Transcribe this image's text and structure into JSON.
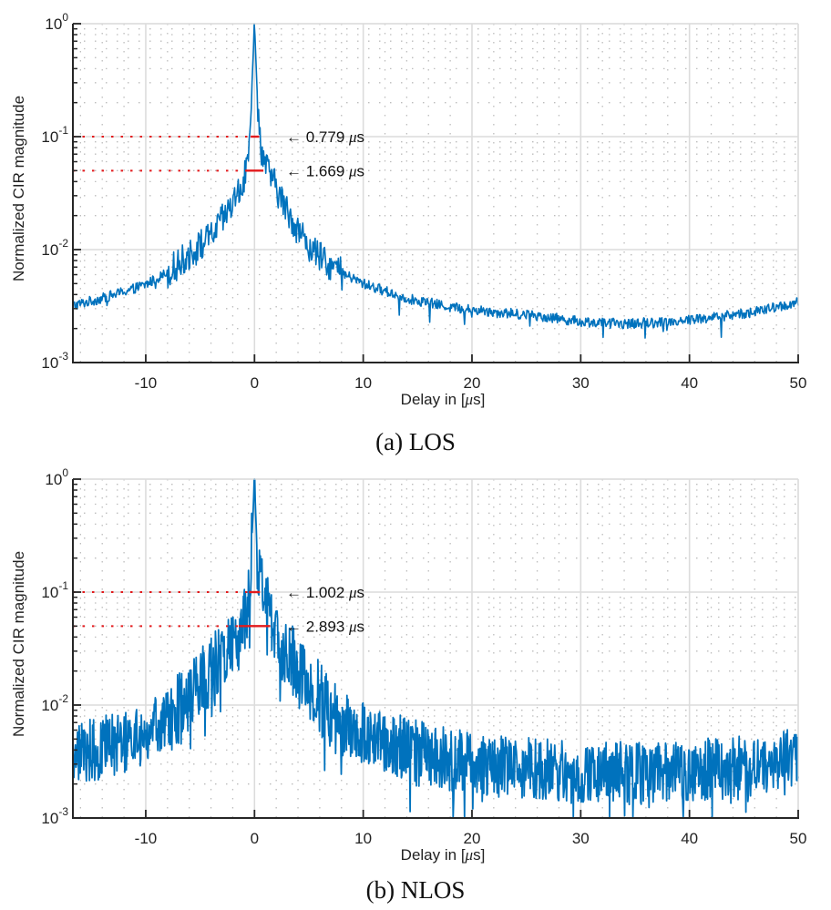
{
  "chart_data": [
    {
      "type": "line",
      "id": "los",
      "caption": "(a) LOS",
      "xlabel": "Delay in [μs]",
      "ylabel": "Normalized CIR magnitude",
      "xlim": [
        -16.7,
        50
      ],
      "ylim": [
        0.001,
        1
      ],
      "yscale": "log",
      "grid": true,
      "minor_grid": true,
      "xticks": [
        -10,
        0,
        10,
        20,
        30,
        40,
        50
      ],
      "xtick_labels": [
        "-10",
        "0",
        "10",
        "20",
        "30",
        "40",
        "50"
      ],
      "yticks": [
        0.001,
        0.01,
        0.1,
        1
      ],
      "ytick_labels": [
        {
          "base": "10",
          "exp": "-3"
        },
        {
          "base": "10",
          "exp": "-2"
        },
        {
          "base": "10",
          "exp": "-1"
        },
        {
          "base": "10",
          "exp": "0"
        }
      ],
      "series": [
        {
          "name": "CIR magnitude",
          "color": "#0072BD",
          "noise_level": "low",
          "envelope": {
            "x": [
              -16.7,
              -14,
              -10,
              -8,
              -6,
              -4,
              -3,
              -2,
              -1,
              -0.5,
              0,
              0.3,
              0.6,
              1,
              1.5,
              2,
              3,
              4,
              5,
              6,
              8,
              10,
              14,
              18,
              22,
              26,
              30,
              34,
              38,
              42,
              46,
              50
            ],
            "y": [
              0.0032,
              0.0037,
              0.0049,
              0.0063,
              0.009,
              0.013,
              0.018,
              0.025,
              0.04,
              0.07,
              1.0,
              0.18,
              0.08,
              0.055,
              0.045,
              0.035,
              0.022,
              0.015,
              0.011,
              0.0085,
              0.0062,
              0.005,
              0.0037,
              0.0031,
              0.0028,
              0.0026,
              0.0023,
              0.0022,
              0.0023,
              0.0025,
              0.0028,
              0.0034
            ]
          }
        }
      ],
      "annotations": [
        {
          "level": 0.1,
          "width_label": "0.779",
          "unit": "μs",
          "arrow": "←",
          "x_start": -0.35,
          "x_end": 0.43
        },
        {
          "level": 0.05,
          "width_label": "1.669",
          "unit": "μs",
          "arrow": "←",
          "x_start": -0.85,
          "x_end": 0.82
        }
      ],
      "annotation_color": "#E31A1C"
    },
    {
      "type": "line",
      "id": "nlos",
      "caption": "(b) NLOS",
      "xlabel": "Delay in [μs]",
      "ylabel": "Normalized CIR magnitude",
      "xlim": [
        -16.7,
        50
      ],
      "ylim": [
        0.001,
        1
      ],
      "yscale": "log",
      "grid": true,
      "minor_grid": true,
      "xticks": [
        -10,
        0,
        10,
        20,
        30,
        40,
        50
      ],
      "xtick_labels": [
        "-10",
        "0",
        "10",
        "20",
        "30",
        "40",
        "50"
      ],
      "yticks": [
        0.001,
        0.01,
        0.1,
        1
      ],
      "ytick_labels": [
        {
          "base": "10",
          "exp": "-3"
        },
        {
          "base": "10",
          "exp": "-2"
        },
        {
          "base": "10",
          "exp": "-1"
        },
        {
          "base": "10",
          "exp": "0"
        }
      ],
      "series": [
        {
          "name": "CIR magnitude",
          "color": "#0072BD",
          "noise_level": "high",
          "envelope": {
            "x": [
              -16.7,
              -14,
              -10,
              -8,
              -6,
              -4,
              -3,
              -2,
              -1,
              -0.5,
              0,
              0.3,
              0.8,
              1.5,
              2,
              3,
              4,
              5,
              6,
              7,
              8,
              10,
              14,
              18,
              22,
              26,
              30,
              34,
              38,
              42,
              46,
              50
            ],
            "y": [
              0.0037,
              0.0042,
              0.0055,
              0.007,
              0.012,
              0.02,
              0.026,
              0.035,
              0.05,
              0.08,
              1.0,
              0.15,
              0.09,
              0.06,
              0.045,
              0.03,
              0.021,
              0.016,
              0.0115,
              0.008,
              0.0068,
              0.0055,
              0.0042,
              0.0033,
              0.0029,
              0.0027,
              0.0025,
              0.0025,
              0.0025,
              0.0027,
              0.003,
              0.0037
            ]
          }
        }
      ],
      "annotations": [
        {
          "level": 0.1,
          "width_label": "1.002",
          "unit": "μs",
          "arrow": "←",
          "x_start": -0.5,
          "x_end": 0.5
        },
        {
          "level": 0.05,
          "width_label": "2.893",
          "unit": "μs",
          "arrow": "←",
          "x_start": -1.45,
          "x_end": 1.45
        }
      ],
      "annotation_color": "#E31A1C"
    }
  ]
}
